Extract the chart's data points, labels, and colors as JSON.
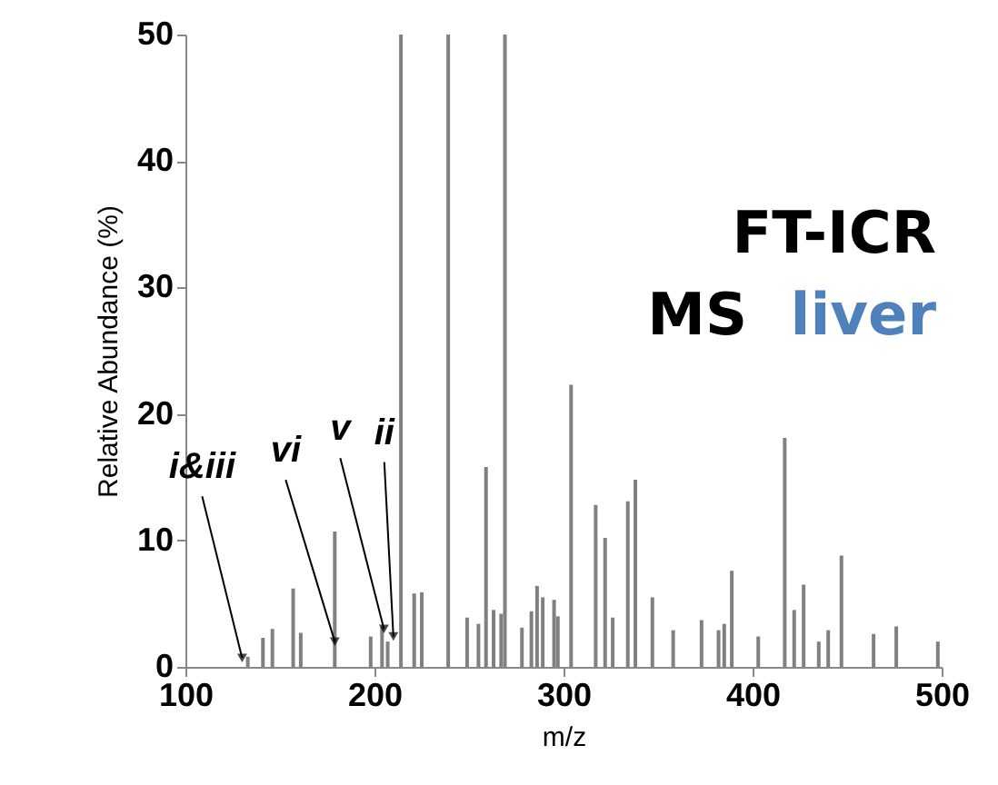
{
  "chart_data": {
    "type": "bar",
    "title": "FT-ICR MS liver",
    "xlabel": "m/z",
    "ylabel": "Relative Abundance (%)",
    "x": [
      133,
      141,
      146,
      157,
      161,
      179,
      198,
      204,
      207,
      214,
      221,
      225,
      239,
      249,
      255,
      259,
      263,
      267,
      269,
      278,
      283,
      286,
      289,
      295,
      297,
      304,
      317,
      322,
      326,
      334,
      338,
      347,
      358,
      373,
      382,
      385,
      389,
      403,
      417,
      422,
      427,
      435,
      440,
      447,
      464,
      476,
      498
    ],
    "series": [
      {
        "color": "#808080",
        "values": [
          0.8,
          2.3,
          3.0,
          6.2,
          2.7,
          10.7,
          2.4,
          3.2,
          2.0,
          50,
          5.8,
          5.9,
          50,
          3.9,
          3.4,
          15.8,
          4.5,
          4.2,
          50,
          3.1,
          4.4,
          6.4,
          5.5,
          5.3,
          4.0,
          22.3,
          12.8,
          10.2,
          3.9,
          13.1,
          14.8,
          5.5,
          2.9,
          3.7,
          2.9,
          3.4,
          7.6,
          2.4,
          18.1,
          4.5,
          6.5,
          2.0,
          2.9,
          8.8,
          2.6,
          3.2,
          2.0
        ]
      }
    ],
    "xlim": [
      100,
      500
    ],
    "xticks": [
      100,
      200,
      300,
      400,
      500
    ],
    "ylim": [
      0,
      50
    ],
    "yticks": [
      0,
      10,
      20,
      30,
      40,
      50
    ],
    "grid": false,
    "annotations": [
      {
        "text": "i&iii",
        "x": 130,
        "y": 0.7
      },
      {
        "text": "vi",
        "x": 179,
        "y": 2
      },
      {
        "text": "v",
        "x": 205,
        "y": 3
      },
      {
        "text": "ii",
        "x": 210,
        "y": 2.4
      }
    ]
  }
}
